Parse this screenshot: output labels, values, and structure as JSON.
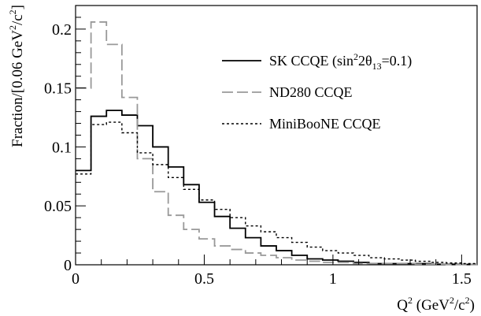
{
  "chart_data": {
    "type": "line",
    "xlim": [
      0,
      1.56
    ],
    "ylim": [
      0,
      0.22
    ],
    "bin_width": 0.06,
    "grid": false,
    "legend_position": "top-right",
    "x_ticks": [
      "0",
      "0.5",
      "1",
      "1.5"
    ],
    "x_tick_values": [
      0,
      0.5,
      1,
      1.5
    ],
    "y_ticks": [
      "0",
      "0.05",
      "0.1",
      "0.15",
      "0.2"
    ],
    "y_tick_values": [
      0,
      0.05,
      0.1,
      0.15,
      0.2
    ],
    "xlabel": {
      "main": "Q",
      "sup1": "2",
      "mid": " (GeV",
      "sup2": "2",
      "end": "/c",
      "sup3": "2",
      "close": ")"
    },
    "ylabel": {
      "main": "Fraction/[0.06 GeV",
      "sup1": "2",
      "mid": "/c",
      "sup2": "2",
      "close": "]"
    },
    "series": [
      {
        "name": "SK CCQE (sin²2θ₁₃=0.1)",
        "legend": {
          "pre": "SK CCQE (sin",
          "sup": "2",
          "mid": "2θ",
          "sub": "13",
          "post": "=0.1)"
        },
        "color": "#000000",
        "style": "solid",
        "values": [
          0.08,
          0.126,
          0.131,
          0.127,
          0.118,
          0.1,
          0.083,
          0.068,
          0.053,
          0.041,
          0.031,
          0.023,
          0.016,
          0.012,
          0.008,
          0.005,
          0.004,
          0.003,
          0.002,
          0.001,
          0.001,
          0.001,
          0.001,
          0.0005,
          0.0005,
          0.0003
        ]
      },
      {
        "name": "ND280 CCQE",
        "legend": {
          "pre": "ND280 CCQE"
        },
        "color": "#999999",
        "style": "dashed",
        "values": [
          0.15,
          0.206,
          0.187,
          0.142,
          0.09,
          0.062,
          0.042,
          0.03,
          0.022,
          0.016,
          0.013,
          0.01,
          0.008,
          0.006,
          0.004,
          0.003,
          0.002,
          0.002,
          0.001,
          0.001,
          0.001,
          0.001,
          0.0005,
          0.0005,
          0.0003,
          0.0003
        ]
      },
      {
        "name": "MiniBooNE CCQE",
        "legend": {
          "pre": "MiniBooNE CCQE"
        },
        "color": "#000000",
        "style": "dotted",
        "values": [
          0.077,
          0.119,
          0.121,
          0.112,
          0.095,
          0.085,
          0.074,
          0.064,
          0.055,
          0.047,
          0.04,
          0.033,
          0.028,
          0.023,
          0.019,
          0.015,
          0.012,
          0.01,
          0.008,
          0.006,
          0.005,
          0.004,
          0.003,
          0.002,
          0.0015,
          0.001
        ]
      }
    ]
  }
}
